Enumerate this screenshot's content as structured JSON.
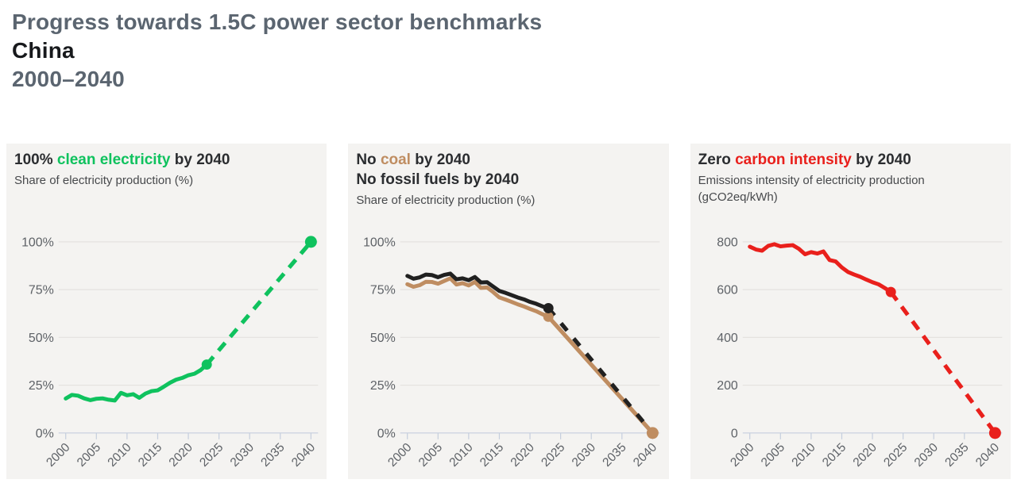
{
  "header": {
    "title": "Progress towards 1.5C power sector benchmarks",
    "country": "China",
    "period": "2000–2040"
  },
  "colors": {
    "clean_green": "#0fc25e",
    "coal_brown": "#bf8d61",
    "fossil_black": "#202020",
    "intensity_red": "#e9201c",
    "panel_bg": "#f4f3f1",
    "grid_line": "#e4e2df",
    "axis_line": "#c5cedd",
    "axis_text": "#5e6267",
    "heading_gray": "#5b6570"
  },
  "chart_data": [
    {
      "type": "line",
      "title_lines": [
        [
          {
            "text": "100% "
          },
          {
            "text": "clean electricity",
            "color": "#0fc25e"
          },
          {
            "text": " by 2040"
          }
        ]
      ],
      "subtitle": "Share of electricity production (%)",
      "years": [
        2000,
        2001,
        2002,
        2003,
        2004,
        2005,
        2006,
        2007,
        2008,
        2009,
        2010,
        2011,
        2012,
        2013,
        2014,
        2015,
        2016,
        2017,
        2018,
        2019,
        2020,
        2021,
        2022,
        2023
      ],
      "xticks": [
        2000,
        2005,
        2010,
        2015,
        2020,
        2025,
        2030,
        2035,
        2040
      ],
      "ylim": [
        0,
        100
      ],
      "yticks": [
        0,
        25,
        50,
        75,
        100
      ],
      "ytick_labels": [
        "0%",
        "25%",
        "50%",
        "75%",
        "100%"
      ],
      "grid": true,
      "legend": "none",
      "series": [
        {
          "name": "clean electricity share",
          "color": "#0fc25e",
          "values": [
            18.0,
            19.9,
            19.5,
            18.1,
            17.2,
            17.9,
            18.1,
            17.4,
            17.0,
            21.0,
            19.7,
            20.3,
            18.4,
            20.6,
            21.9,
            22.3,
            24.2,
            26.3,
            27.9,
            28.8,
            30.2,
            31.0,
            32.9,
            35.8
          ],
          "projection": {
            "year": 2040,
            "value": 100,
            "dash": "13 10"
          },
          "junction_dot": true,
          "end_dot": true
        }
      ]
    },
    {
      "type": "line",
      "title_lines": [
        [
          {
            "text": "No "
          },
          {
            "text": "coal",
            "color": "#bf8d61"
          },
          {
            "text": " by 2040"
          }
        ],
        [
          {
            "text": "No fossil fuels by 2040"
          }
        ]
      ],
      "subtitle": "Share of electricity production (%)",
      "years": [
        2000,
        2001,
        2002,
        2003,
        2004,
        2005,
        2006,
        2007,
        2008,
        2009,
        2010,
        2011,
        2012,
        2013,
        2014,
        2015,
        2016,
        2017,
        2018,
        2019,
        2020,
        2021,
        2022,
        2023
      ],
      "xticks": [
        2000,
        2005,
        2010,
        2015,
        2020,
        2025,
        2030,
        2035,
        2040
      ],
      "ylim": [
        0,
        100
      ],
      "yticks": [
        0,
        25,
        50,
        75,
        100
      ],
      "ytick_labels": [
        "0%",
        "25%",
        "50%",
        "75%",
        "100%"
      ],
      "grid": true,
      "legend": "none",
      "series": [
        {
          "name": "coal share",
          "color": "#bf8d61",
          "values": [
            77.8,
            76.5,
            77.3,
            79.1,
            79.0,
            78.1,
            79.5,
            80.9,
            77.7,
            78.4,
            77.2,
            79.0,
            75.9,
            76.1,
            73.7,
            70.9,
            69.8,
            68.6,
            67.3,
            66.2,
            64.9,
            63.7,
            62.2,
            60.8
          ],
          "projection": {
            "year": 2040,
            "value": 0,
            "dash": "none"
          },
          "junction_dot": true,
          "end_dot": true
        },
        {
          "name": "fossil fuels share",
          "color": "#202020",
          "values": [
            82.2,
            80.7,
            81.4,
            82.9,
            82.6,
            81.5,
            82.7,
            83.4,
            80.4,
            80.9,
            79.9,
            81.6,
            78.7,
            78.9,
            76.6,
            74.3,
            73.3,
            72.1,
            70.9,
            69.9,
            68.6,
            67.6,
            66.3,
            65.3
          ],
          "projection": {
            "year": 2040,
            "value": 0,
            "dash": "12 13"
          },
          "junction_dot": true,
          "end_dot": false
        }
      ]
    },
    {
      "type": "line",
      "title_lines": [
        [
          {
            "text": "Zero "
          },
          {
            "text": "carbon intensity",
            "color": "#e9201c"
          },
          {
            "text": " by 2040"
          }
        ]
      ],
      "subtitle": "Emissions intensity of electricity production (gCO2eq/kWh)",
      "years": [
        2000,
        2001,
        2002,
        2003,
        2004,
        2005,
        2006,
        2007,
        2008,
        2009,
        2010,
        2011,
        2012,
        2013,
        2014,
        2015,
        2016,
        2017,
        2018,
        2019,
        2020,
        2021,
        2022,
        2023
      ],
      "xticks": [
        2000,
        2005,
        2010,
        2015,
        2020,
        2025,
        2030,
        2035,
        2040
      ],
      "ylim": [
        0,
        800
      ],
      "yticks": [
        0,
        200,
        400,
        600,
        800
      ],
      "ytick_labels": [
        "0",
        "200",
        "400",
        "600",
        "800"
      ],
      "grid": true,
      "legend": "none",
      "series": [
        {
          "name": "carbon intensity",
          "color": "#e9201c",
          "values": [
            780,
            768,
            763,
            783,
            790,
            781,
            784,
            786,
            771,
            748,
            757,
            751,
            760,
            724,
            718,
            693,
            674,
            663,
            654,
            642,
            631,
            622,
            607,
            590
          ],
          "projection": {
            "year": 2040,
            "value": 0,
            "dash": "13 10"
          },
          "junction_dot": true,
          "end_dot": true
        }
      ]
    }
  ]
}
